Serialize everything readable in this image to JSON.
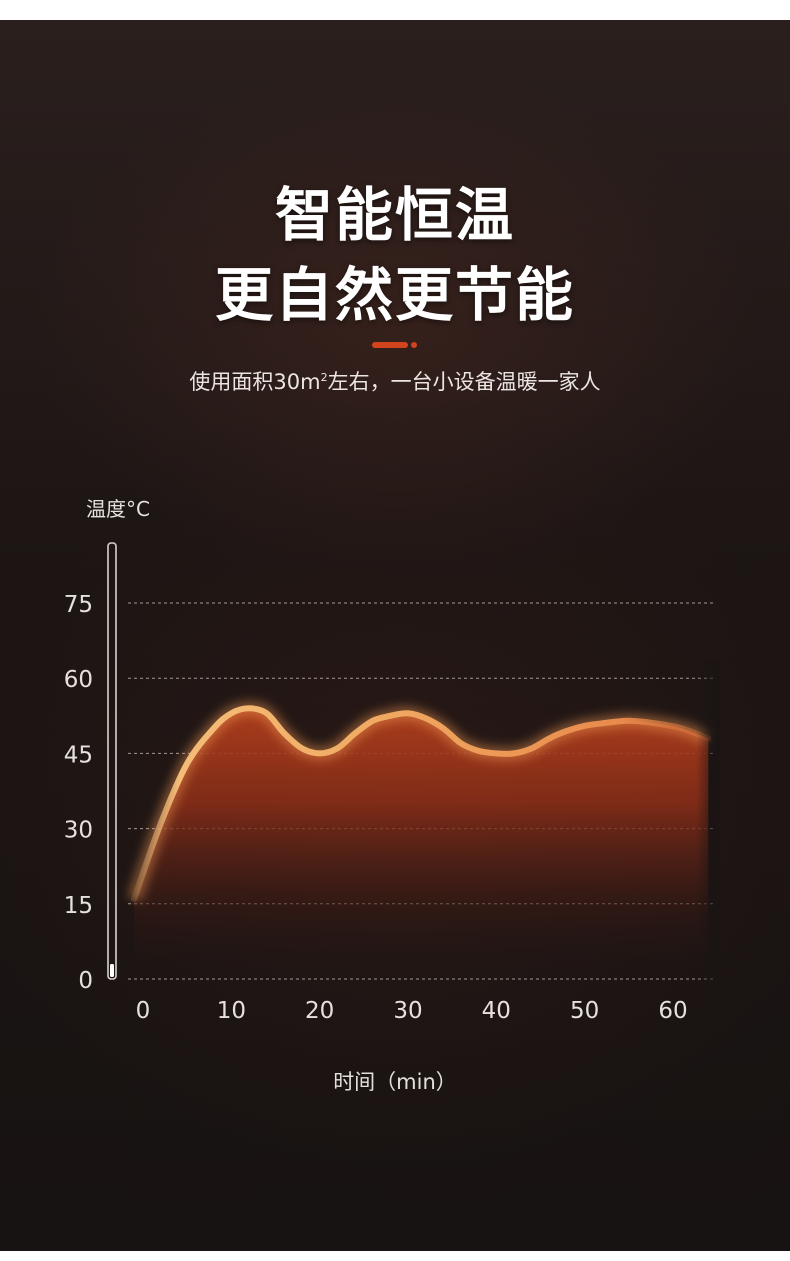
{
  "header": {
    "title_line1": "智能恒温",
    "title_line2": "更自然更节能",
    "subtitle_before": "使用面积30m",
    "subtitle_sup": "2",
    "subtitle_after": "左右，一台小设备温暖一家人"
  },
  "colors": {
    "accent": "#d2451c",
    "curve_light": "#f2b87a",
    "curve_mid": "#e8924e",
    "fill_red": "#a8381c"
  },
  "chart_data": {
    "type": "area",
    "ylabel": "温度°C",
    "xlabel": "时间（min）",
    "xlim": [
      0,
      65
    ],
    "ylim": [
      0,
      80
    ],
    "x_ticks": [
      0,
      10,
      20,
      30,
      40,
      50,
      60
    ],
    "y_ticks": [
      0,
      15,
      30,
      45,
      60,
      75
    ],
    "grid": true,
    "series": [
      {
        "x": [
          -1,
          2,
          5,
          8,
          10,
          12,
          14,
          16,
          18,
          20,
          22,
          24,
          26,
          28,
          30,
          32,
          34,
          36,
          38,
          40,
          42,
          44,
          46,
          48,
          50,
          52,
          55,
          58,
          61,
          64
        ],
        "y": [
          16,
          31,
          43,
          50,
          53,
          54,
          53,
          49,
          46,
          45,
          46,
          49,
          51.5,
          52.5,
          53,
          52,
          50,
          47,
          45.5,
          45,
          45,
          46,
          48,
          49.5,
          50.5,
          51,
          51.5,
          51,
          50,
          48
        ]
      }
    ]
  }
}
